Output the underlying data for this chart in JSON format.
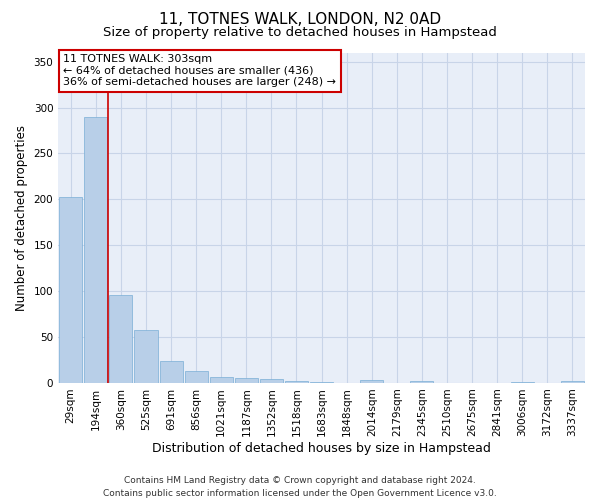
{
  "title": "11, TOTNES WALK, LONDON, N2 0AD",
  "subtitle": "Size of property relative to detached houses in Hampstead",
  "xlabel": "Distribution of detached houses by size in Hampstead",
  "ylabel": "Number of detached properties",
  "bar_values": [
    203,
    290,
    96,
    58,
    24,
    13,
    6,
    5,
    4,
    2,
    1,
    0,
    3,
    0,
    2,
    0,
    0,
    0,
    1,
    0,
    2
  ],
  "bar_labels": [
    "29sqm",
    "194sqm",
    "360sqm",
    "525sqm",
    "691sqm",
    "856sqm",
    "1021sqm",
    "1187sqm",
    "1352sqm",
    "1518sqm",
    "1683sqm",
    "1848sqm",
    "2014sqm",
    "2179sqm",
    "2345sqm",
    "2510sqm",
    "2675sqm",
    "2841sqm",
    "3006sqm",
    "3172sqm",
    "3337sqm"
  ],
  "bar_color": "#b8cfe8",
  "bar_edge_color": "#7aaed6",
  "grid_color": "#c8d4e8",
  "bg_color": "#e8eef8",
  "annotation_line1": "11 TOTNES WALK: 303sqm",
  "annotation_line2": "← 64% of detached houses are smaller (436)",
  "annotation_line3": "36% of semi-detached houses are larger (248) →",
  "annotation_box_color": "#cc0000",
  "vline_x_index": 1.5,
  "vline_color": "#cc0000",
  "ylim": [
    0,
    360
  ],
  "yticks": [
    0,
    50,
    100,
    150,
    200,
    250,
    300,
    350
  ],
  "footer": "Contains HM Land Registry data © Crown copyright and database right 2024.\nContains public sector information licensed under the Open Government Licence v3.0.",
  "title_fontsize": 11,
  "subtitle_fontsize": 9.5,
  "xlabel_fontsize": 9,
  "ylabel_fontsize": 8.5,
  "tick_fontsize": 7.5,
  "annotation_fontsize": 8,
  "footer_fontsize": 6.5
}
